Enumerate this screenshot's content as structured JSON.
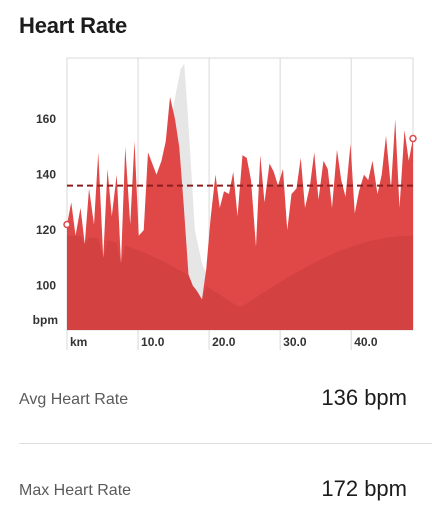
{
  "header": {
    "title": "Heart Rate"
  },
  "colors": {
    "fill_main": "#e04848",
    "fill_deep": "#c83c3c",
    "elevation": "#e6e6e6",
    "avg_line": "#8c1f1f",
    "grid": "#d8d8d8"
  },
  "chart_data": {
    "type": "area",
    "xlabel": "km",
    "ylabel": "bpm",
    "x_ticks": [
      {
        "value": 10,
        "label": "10.0"
      },
      {
        "value": 20,
        "label": "20.0"
      },
      {
        "value": 30,
        "label": "30.0"
      },
      {
        "value": 40,
        "label": "40.0"
      }
    ],
    "y_ticks": [
      {
        "value": 100,
        "label": "100"
      },
      {
        "value": 120,
        "label": "120"
      },
      {
        "value": 140,
        "label": "140"
      },
      {
        "value": 160,
        "label": "160"
      }
    ],
    "xlim": [
      0,
      48.7
    ],
    "ylim": [
      84,
      182
    ],
    "grid": true,
    "average_line": 136,
    "series": [
      {
        "x": [
          0,
          0.6,
          1.2,
          1.9,
          2.5,
          3.1,
          3.8,
          4.4,
          5.1,
          5.7,
          6.3,
          7.0,
          7.6,
          8.2,
          8.9,
          9.5,
          10.1,
          10.8,
          11.4,
          12.0,
          12.6,
          13.3,
          13.9,
          14.5,
          15.2,
          15.8,
          16.4,
          17.1,
          17.7,
          18.3,
          19.0,
          19.6,
          20.2,
          20.9,
          21.5,
          22.1,
          22.8,
          23.4,
          24.0,
          24.7,
          25.3,
          25.9,
          26.6,
          27.2,
          27.8,
          28.5,
          29.1,
          29.7,
          30.4,
          31.0,
          31.6,
          32.3,
          32.9,
          33.5,
          34.2,
          34.8,
          35.4,
          36.1,
          36.7,
          37.3,
          38.0,
          38.6,
          39.2,
          39.9,
          40.5,
          41.1,
          41.8,
          42.4,
          43.0,
          43.7,
          44.3,
          44.9,
          45.6,
          46.2,
          46.8,
          47.5,
          48.1,
          48.7
        ],
        "values": [
          122,
          130,
          118,
          128,
          115,
          135,
          122,
          148,
          110,
          142,
          125,
          140,
          108,
          150,
          122,
          152,
          118,
          120,
          148,
          144,
          140,
          145,
          152,
          168,
          160,
          150,
          130,
          104,
          100,
          98,
          95,
          106,
          124,
          140,
          128,
          134,
          133,
          141,
          125,
          147,
          146,
          138,
          114,
          147,
          130,
          144,
          141,
          136,
          142,
          120,
          133,
          135,
          146,
          128,
          136,
          148,
          131,
          145,
          142,
          128,
          149,
          138,
          132,
          151,
          126,
          134,
          140,
          138,
          145,
          133,
          140,
          154,
          135,
          160,
          128,
          156,
          145,
          153
        ]
      }
    ],
    "elevation_profile": {
      "x": [
        0,
        2,
        4,
        6,
        8,
        10,
        12,
        14,
        15,
        16,
        16.5,
        17,
        18,
        19,
        20,
        22,
        24,
        26,
        28,
        30,
        32,
        34,
        36,
        38,
        40,
        42,
        44,
        46,
        48,
        48.7
      ],
      "values": [
        122,
        112,
        104,
        97,
        92,
        95,
        100,
        135,
        165,
        178,
        180,
        162,
        120,
        108,
        102,
        92,
        86,
        84,
        86,
        88,
        90,
        92,
        95,
        100,
        104,
        108,
        112,
        116,
        120,
        122
      ]
    }
  },
  "stats": [
    {
      "label": "Avg Heart Rate",
      "value": "136 bpm"
    },
    {
      "label": "Max Heart Rate",
      "value": "172 bpm"
    }
  ]
}
